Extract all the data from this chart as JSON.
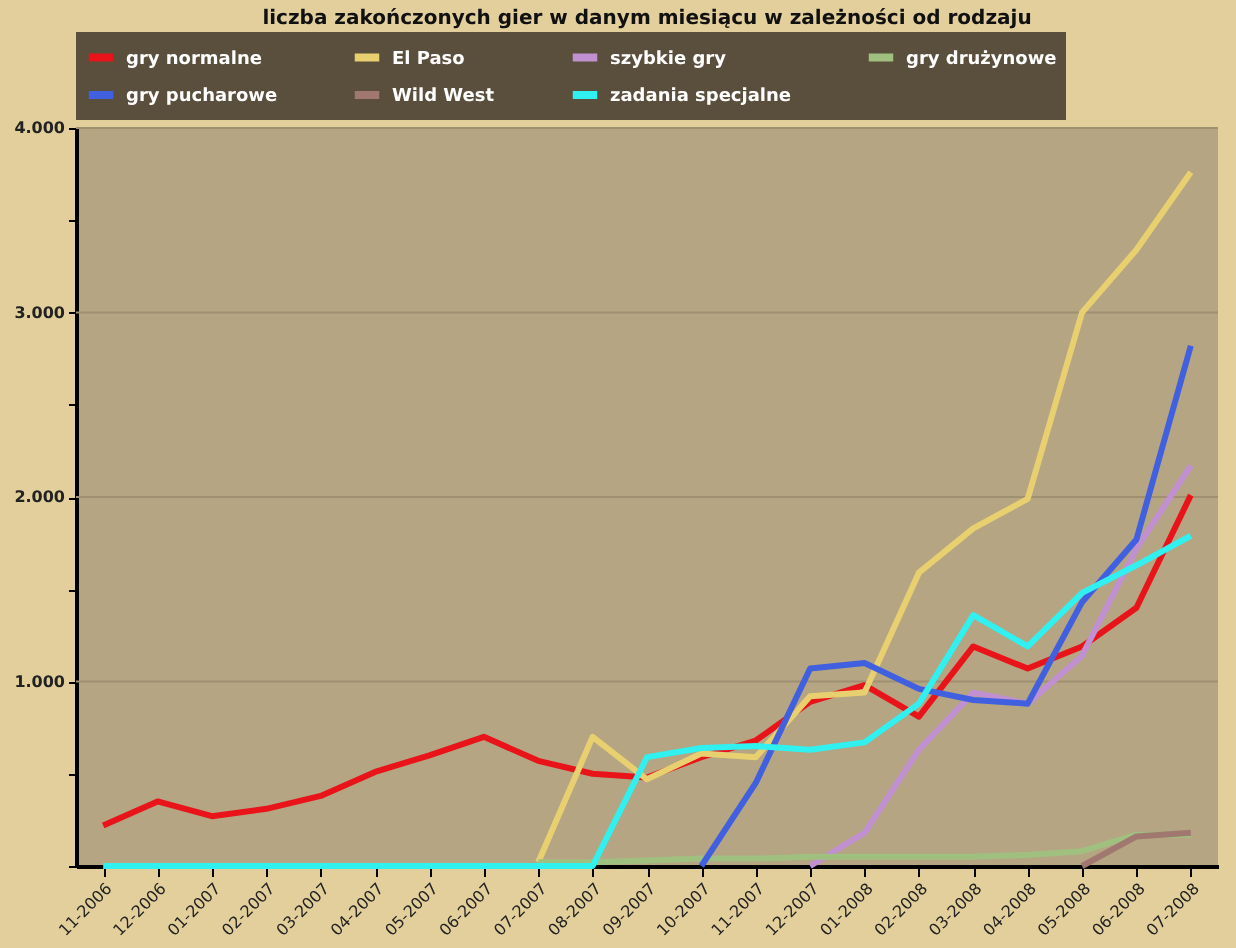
{
  "chart_data": {
    "type": "line",
    "title": "liczba zakończonych gier w danym miesiącu w zależności od rodzaju",
    "categories": [
      "11-2006",
      "12-2006",
      "01-2007",
      "02-2007",
      "03-2007",
      "04-2007",
      "05-2007",
      "06-2007",
      "07-2007",
      "08-2007",
      "09-2007",
      "10-2007",
      "11-2007",
      "12-2007",
      "01-2008",
      "02-2008",
      "03-2008",
      "04-2008",
      "05-2008",
      "06-2008",
      "07-2008"
    ],
    "series": [
      {
        "name": "gry normalne",
        "color": "#e8141a",
        "values": [
          220,
          350,
          270,
          310,
          380,
          510,
          600,
          700,
          570,
          500,
          480,
          590,
          680,
          890,
          980,
          810,
          1190,
          1070,
          1190,
          1400,
          2010
        ]
      },
      {
        "name": "El Paso",
        "color": "#e8d070",
        "values": [
          null,
          null,
          null,
          null,
          null,
          null,
          null,
          null,
          20,
          700,
          470,
          610,
          590,
          920,
          940,
          1590,
          1830,
          1990,
          3000,
          3340,
          3760
        ]
      },
      {
        "name": "szybkie gry",
        "color": "#c090d0",
        "values": [
          null,
          null,
          null,
          null,
          null,
          null,
          null,
          null,
          null,
          null,
          null,
          null,
          null,
          0,
          180,
          630,
          940,
          880,
          1140,
          1720,
          2170
        ]
      },
      {
        "name": "gry drużynowe",
        "color": "#a0c080",
        "values": [
          null,
          null,
          null,
          null,
          null,
          null,
          null,
          null,
          20,
          20,
          30,
          40,
          40,
          50,
          50,
          50,
          50,
          60,
          80,
          170,
          170
        ]
      },
      {
        "name": "gry pucharowe",
        "color": "#4060e0",
        "values": [
          null,
          null,
          null,
          null,
          null,
          null,
          null,
          null,
          null,
          null,
          null,
          0,
          450,
          1070,
          1100,
          960,
          900,
          880,
          1430,
          1770,
          2820
        ]
      },
      {
        "name": "Wild West",
        "color": "#a07870",
        "values": [
          null,
          null,
          null,
          null,
          null,
          null,
          null,
          null,
          null,
          null,
          null,
          null,
          null,
          null,
          null,
          null,
          null,
          null,
          0,
          160,
          180
        ]
      },
      {
        "name": "zadania specjalne",
        "color": "#30f0f0",
        "values": [
          0,
          0,
          0,
          0,
          0,
          0,
          0,
          0,
          0,
          0,
          590,
          640,
          650,
          630,
          670,
          880,
          1360,
          1190,
          1480,
          1630,
          1790
        ]
      }
    ],
    "ylim": [
      0,
      4000
    ],
    "yticks": [
      {
        "value": 0,
        "label": null
      },
      {
        "value": 500,
        "label": null
      },
      {
        "value": 1000,
        "label": "1.000"
      },
      {
        "value": 1500,
        "label": null
      },
      {
        "value": 2000,
        "label": "2.000"
      },
      {
        "value": 2500,
        "label": null
      },
      {
        "value": 3000,
        "label": "3.000"
      },
      {
        "value": 3500,
        "label": null
      },
      {
        "value": 4000,
        "label": "4.000"
      }
    ],
    "grid": "y",
    "legend": "top",
    "marker": "none",
    "line_style": "solid"
  }
}
